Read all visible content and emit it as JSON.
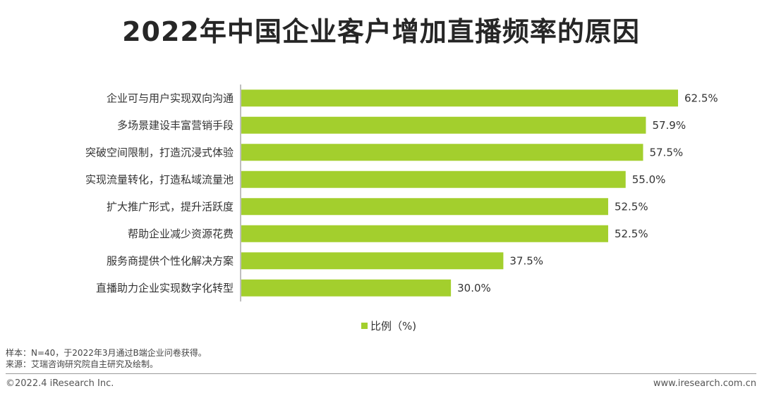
{
  "title": "2022年中国企业客户增加直播频率的原因",
  "colors": {
    "bar": "#a3cf2d",
    "axis": "#7f7f7f"
  },
  "chart_data": {
    "type": "bar",
    "orientation": "horizontal",
    "title": "2022年中国企业客户增加直播频率的原因",
    "categories": [
      "企业可与用户实现双向沟通",
      "多场景建设丰富营销手段",
      "突破空间限制，打造沉浸式体验",
      "实现流量转化，打造私域流量池",
      "扩大推广形式，提升活跃度",
      "帮助企业减少资源花费",
      "服务商提供个性化解决方案",
      "直播助力企业实现数字化转型"
    ],
    "series": [
      {
        "name": "比例（%)",
        "values": [
          62.5,
          57.9,
          57.5,
          55.0,
          52.5,
          52.5,
          37.5,
          30.0
        ]
      }
    ],
    "value_labels": [
      "62.5%",
      "57.9%",
      "57.5%",
      "55.0%",
      "52.5%",
      "52.5%",
      "37.5%",
      "30.0%"
    ],
    "xlim": [
      0,
      70
    ],
    "grid": false,
    "legend_position": "bottom"
  },
  "legend": {
    "label": "比例（%)"
  },
  "notes": {
    "sample": "样本：N=40，于2022年3月通过B端企业问卷获得。",
    "source": "来源：艾瑞咨询研究院自主研究及绘制。"
  },
  "footer": {
    "copyright": "©2022.4 iResearch Inc.",
    "url": "www.iresearch.com.cn"
  }
}
